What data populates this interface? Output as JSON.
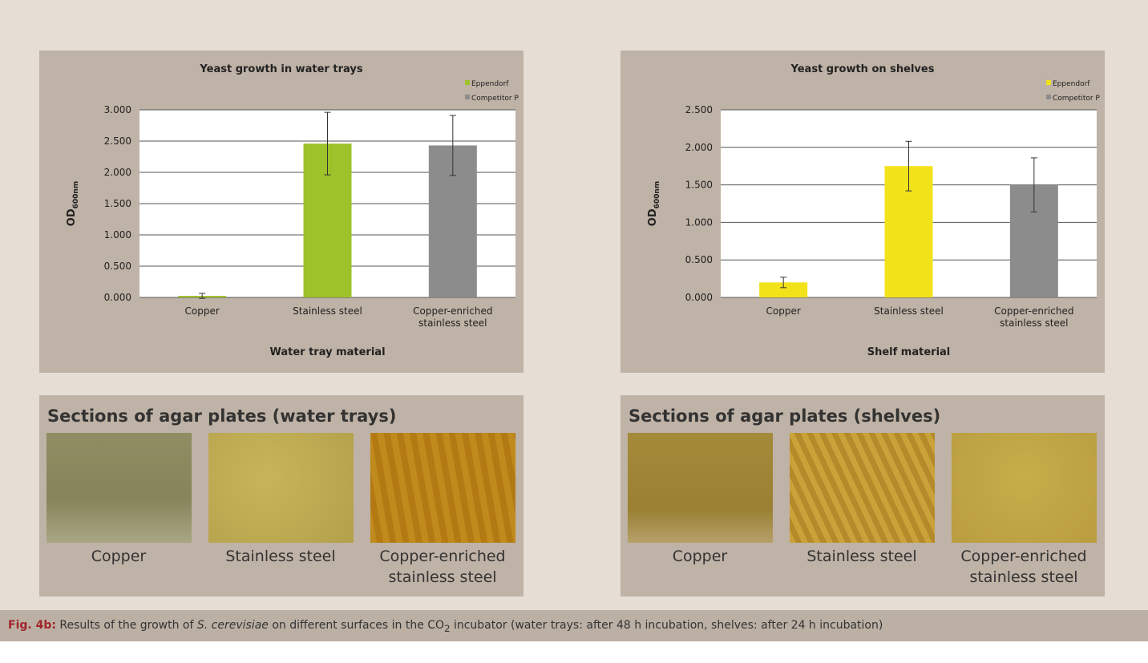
{
  "chart_data": [
    {
      "type": "bar",
      "title": "Yeast growth in water trays",
      "xlabel": "Water tray material",
      "ylabel": "OD",
      "ylabel_sub": "600nm",
      "categories": [
        "Copper",
        "Stainless steel",
        "Copper-enriched stainless steel"
      ],
      "series": [
        {
          "name": "Eppendorf",
          "color": "#9dc22a",
          "values": [
            0.025,
            2.46,
            null
          ],
          "errors": [
            0.04,
            0.5,
            null
          ]
        },
        {
          "name": "Competitor P",
          "color": "#8c8c8c",
          "values": [
            null,
            null,
            2.43
          ],
          "errors": [
            null,
            null,
            0.48
          ]
        }
      ],
      "ylim": [
        0,
        3
      ],
      "yticks": [
        {
          "value": 0,
          "label": "0.000"
        },
        {
          "value": 0.5,
          "label": "0.500"
        },
        {
          "value": 1,
          "label": "1.000"
        },
        {
          "value": 1.5,
          "label": "1.500"
        },
        {
          "value": 2,
          "label": "2.000"
        },
        {
          "value": 2.5,
          "label": "2.500"
        },
        {
          "value": 3,
          "label": "3.000"
        }
      ],
      "grid": true,
      "legend": "top-right"
    },
    {
      "type": "bar",
      "title": "Yeast growth on shelves",
      "xlabel": "Shelf material",
      "ylabel": "OD",
      "ylabel_sub": "600nm",
      "categories": [
        "Copper",
        "Stainless steel",
        "Copper-enriched stainless steel"
      ],
      "series": [
        {
          "name": "Eppendorf",
          "color": "#f2e21a",
          "values": [
            0.2,
            1.75,
            null
          ],
          "errors": [
            0.07,
            0.33,
            null
          ]
        },
        {
          "name": "Competitor P",
          "color": "#8c8c8c",
          "values": [
            null,
            null,
            1.5
          ],
          "errors": [
            null,
            null,
            0.36
          ]
        }
      ],
      "ylim": [
        0,
        2.5
      ],
      "yticks": [
        {
          "value": 0,
          "label": "0.000"
        },
        {
          "value": 0.5,
          "label": "0.500"
        },
        {
          "value": 1,
          "label": "1.000"
        },
        {
          "value": 1.5,
          "label": "1.500"
        },
        {
          "value": 2,
          "label": "2.000"
        },
        {
          "value": 2.5,
          "label": "2.500"
        }
      ],
      "grid": true,
      "legend": "top-right"
    }
  ],
  "agar_panels": [
    {
      "title": "Sections of agar plates (water trays)",
      "images": [
        "Copper",
        "Stainless steel",
        "Copper-enriched stainless steel"
      ]
    },
    {
      "title": "Sections of agar plates (shelves)",
      "images": [
        "Copper",
        "Stainless steel",
        "Copper-enriched stainless steel"
      ]
    }
  ],
  "caption": {
    "label": "Fig. 4b:",
    "text1": "Results of the growth of",
    "species": "S. cerevisiae",
    "text2": "on different surfaces in the CO",
    "sub": "2",
    "text3": "incubator (water trays: after 48 h incubation, shelves: after 24 h incubation)"
  }
}
